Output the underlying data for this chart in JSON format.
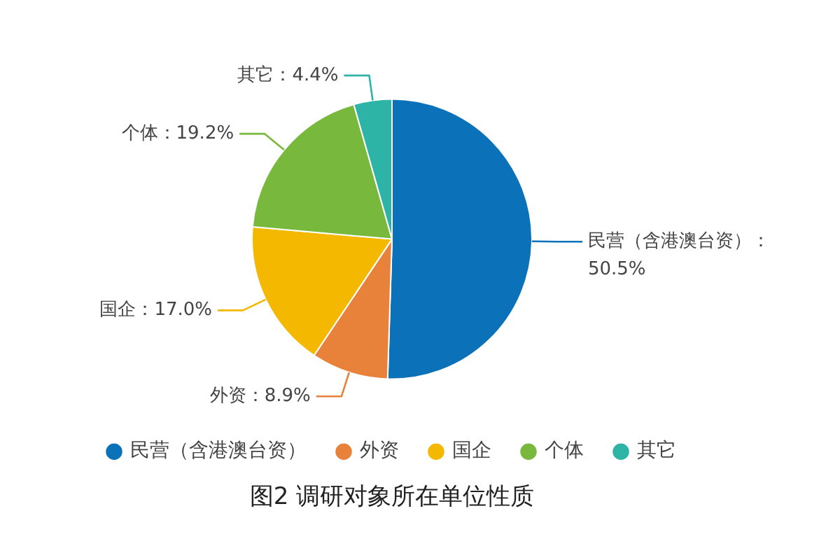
{
  "chart_data": {
    "type": "pie",
    "title": "图2 调研对象所在单位性质",
    "categories": [
      "民营（含港澳台资）",
      "外资",
      "国企",
      "个体",
      "其它"
    ],
    "values": [
      50.5,
      8.9,
      17.0,
      19.2,
      4.4
    ],
    "colors": [
      "#0b72b9",
      "#e8823a",
      "#f4b800",
      "#77b83d",
      "#2eb4a6"
    ],
    "value_labels": [
      "民营（含港澳台资）：50.5%",
      "外资：8.9%",
      "国企：17.0%",
      "个体：19.2%",
      "其它：4.4%"
    ],
    "legend": "bottom"
  }
}
